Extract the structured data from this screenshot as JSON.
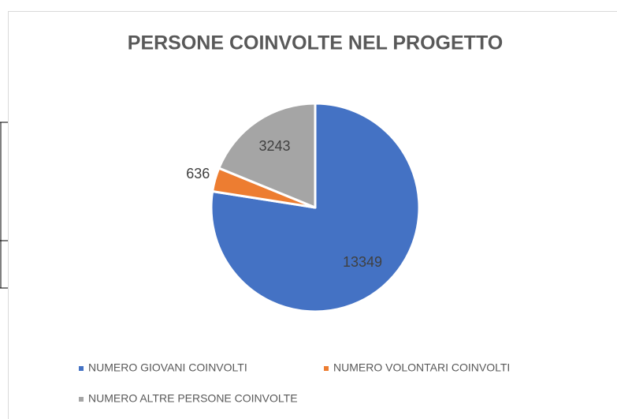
{
  "chart_data": {
    "type": "pie",
    "title": "PERSONE COINVOLTE NEL PROGETTO",
    "categories": [
      "NUMERO GIOVANI COINVOLTI",
      "NUMERO VOLONTARI COINVOLTI",
      "NUMERO ALTRE PERSONE COINVOLTE"
    ],
    "values": [
      13349,
      636,
      3243
    ],
    "colors": [
      "#4472c4",
      "#ed7d31",
      "#a5a5a5"
    ],
    "legend": "bottom"
  }
}
